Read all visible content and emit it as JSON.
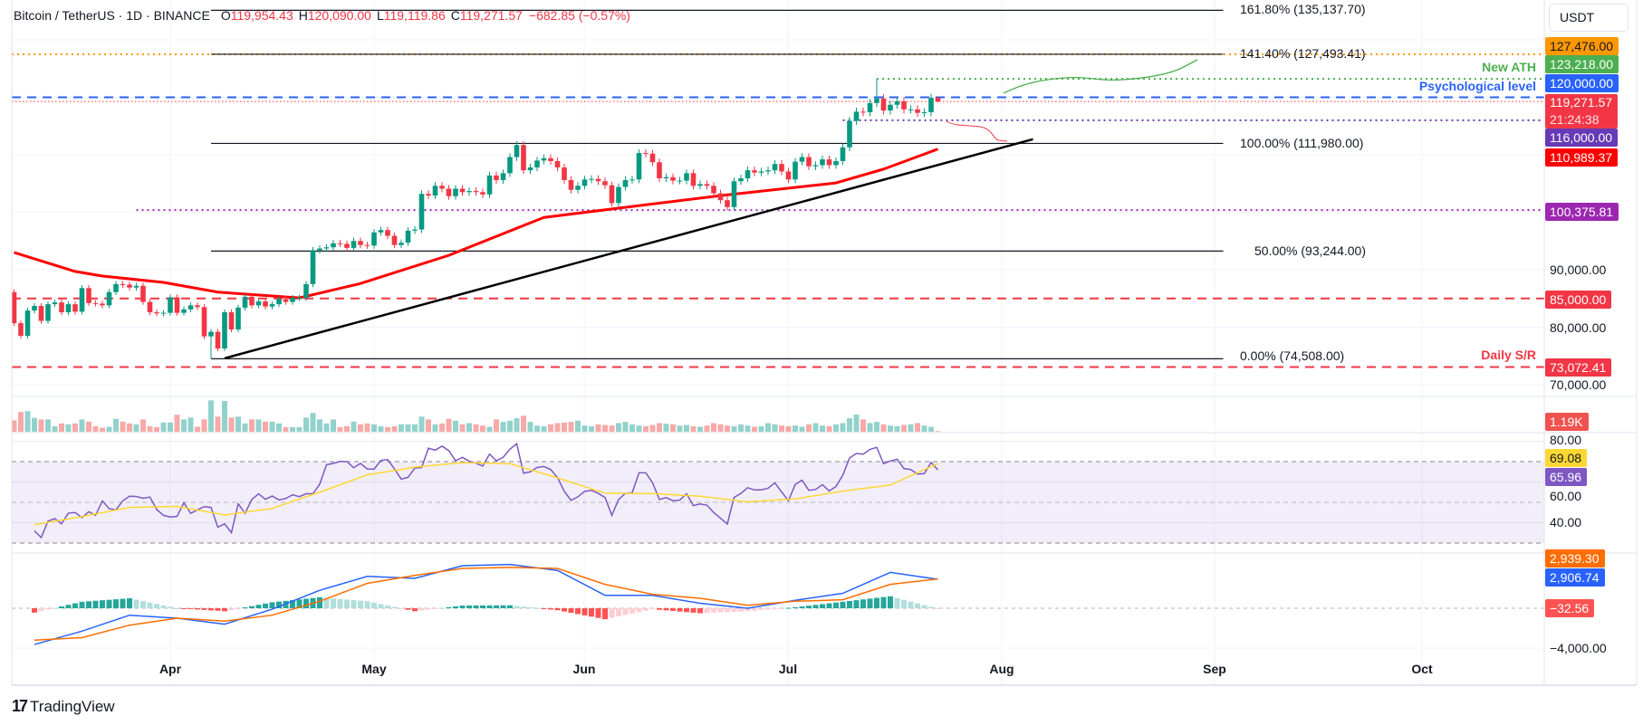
{
  "header": {
    "symbol": "Bitcoin / TetherUS · 1D · BINANCE",
    "open_label": "O",
    "open": "119,954.43",
    "high_label": "H",
    "high": "120,090.00",
    "low_label": "L",
    "low": "119,119.86",
    "close_label": "C",
    "close": "119,271.57",
    "change": "−682.85 (−0.57%)"
  },
  "currency_button": "USDT",
  "price_axis": {
    "ticks": [
      "90,000.00",
      "80,000.00",
      "70,000.00"
    ],
    "tags": [
      {
        "text": "127,476.00",
        "color": "#ff9800",
        "text_color": "#131722"
      },
      {
        "text": "123,218.00",
        "color": "#4caf50",
        "text_color": "#ffffff"
      },
      {
        "text": "120,000.00",
        "color": "#2962ff",
        "text_color": "#ffffff"
      },
      {
        "text": "119,271.57",
        "sub": "21:24:38",
        "color": "#f23645",
        "text_color": "#ffffff"
      },
      {
        "text": "116,000.00",
        "color": "#673ab7",
        "text_color": "#ffffff"
      },
      {
        "text": "110,989.37",
        "color": "#ff0000",
        "text_color": "#ffffff"
      },
      {
        "text": "100,375.81",
        "color": "#9c27b0",
        "text_color": "#ffffff"
      },
      {
        "text": "85,000.00",
        "color": "#f23645",
        "text_color": "#ffffff"
      },
      {
        "text": "73,072.41",
        "color": "#f23645",
        "text_color": "#ffffff"
      }
    ]
  },
  "annotations": {
    "new_ath": "New ATH",
    "psychological": "Psychological level",
    "daily_sr": "Daily S/R"
  },
  "fib_labels": [
    "161.80% (135,137.70)",
    "141.40% (127,493.41)",
    "100.00% (111,980.00)",
    "50.00% (93,244.00)",
    "0.00% (74,508.00)"
  ],
  "volume": {
    "tag": "1.19K",
    "color": "#ef5350"
  },
  "rsi": {
    "ticks": [
      "80.00",
      "60.00",
      "40.00"
    ],
    "ma_tag": "69.08",
    "ma_color": "#fdd835",
    "value_tag": "65.96",
    "value_color": "#7e57c2"
  },
  "macd": {
    "ticks": [
      "−4,000.00"
    ],
    "signal_tag": "2,939.30",
    "signal_color": "#ff6d00",
    "macd_tag": "2,906.74",
    "macd_color": "#2962ff",
    "hist_tag": "−32.56",
    "hist_color": "#ff5252"
  },
  "time_axis": [
    "Apr",
    "May",
    "Jun",
    "Jul",
    "Aug",
    "Sep",
    "Oct"
  ],
  "branding": "TradingView",
  "colors": {
    "up": "#089981",
    "down": "#f23645",
    "ema": "#ff0000",
    "rsi_band": "#7e57c2"
  },
  "chart_data": {
    "type": "candlestick",
    "interval": "1D",
    "first_date": "2025-03-09",
    "first_open": 86100,
    "closes": [
      80700,
      78500,
      82900,
      83700,
      81100,
      84000,
      84300,
      82600,
      84000,
      82700,
      86800,
      84200,
      84100,
      83800,
      86100,
      87500,
      87400,
      86900,
      87200,
      84400,
      82600,
      82400,
      82500,
      85200,
      82500,
      83100,
      83800,
      83500,
      78400,
      79200,
      76300,
      82600,
      79600,
      83400,
      85300,
      83800,
      84500,
      83600,
      84000,
      84900,
      84400,
      85100,
      85100,
      87500,
      93400,
      93700,
      93900,
      94600,
      94500,
      93800,
      95000,
      94300,
      94200,
      96500,
      96900,
      95900,
      94300,
      94700,
      96800,
      97000,
      103200,
      102900,
      104600,
      104100,
      102800,
      104100,
      103500,
      103700,
      103500,
      103100,
      106400,
      105600,
      106800,
      109600,
      111700,
      107300,
      107800,
      109000,
      109400,
      108900,
      107800,
      105600,
      103900,
      104600,
      105700,
      105800,
      105400,
      104700,
      101600,
      104400,
      105600,
      105700,
      110300,
      110200,
      108700,
      105900,
      106100,
      105500,
      105500,
      106800,
      104600,
      104900,
      104600,
      103300,
      102100,
      100900,
      105400,
      105900,
      107300,
      106900,
      107100,
      107300,
      108400,
      107100,
      105700,
      108800,
      109600,
      108000,
      108200,
      109200,
      108200,
      108900,
      111300,
      115900,
      117500,
      117400,
      119000,
      119800,
      117700,
      118700,
      119300,
      117900,
      117900,
      117300,
      117400,
      119900,
      119271.57
    ],
    "last_candle": {
      "open": 119954.43,
      "high": 120090.0,
      "low": 119119.86,
      "close": 119271.57
    },
    "extremes": [
      {
        "date": "2025-07-14",
        "high": 123218
      },
      {
        "date": "2025-04-07",
        "low": 74508
      }
    ],
    "volume_k": [
      18.5,
      32,
      33.5,
      22.5,
      20,
      20,
      9,
      13.5,
      12,
      13.5,
      20,
      16.5,
      9,
      6.5,
      8,
      21,
      16.5,
      13.5,
      12,
      20,
      9,
      7.5,
      15,
      15,
      27.5,
      20,
      23,
      8,
      20,
      51,
      24.5,
      50,
      23,
      24.5,
      13.5,
      20,
      20,
      16.5,
      16.5,
      13.5,
      7.5,
      7.5,
      7.5,
      23,
      30.5,
      20,
      13.5,
      20,
      7.5,
      9,
      16.5,
      12,
      13.5,
      12,
      9,
      7.5,
      9,
      12,
      12,
      12,
      24.5,
      20,
      12,
      13.5,
      21,
      18,
      12,
      14,
      12,
      10,
      8,
      20,
      16,
      18,
      22,
      26,
      16,
      10,
      9,
      12,
      14,
      15,
      16,
      18,
      10,
      9,
      12,
      11,
      10,
      14,
      16,
      12,
      10,
      9,
      11,
      14,
      13,
      12,
      10,
      11,
      9,
      8,
      10,
      14,
      12,
      10,
      9,
      12,
      10,
      8,
      9,
      14,
      12,
      10,
      9,
      10,
      8,
      12,
      14,
      10,
      9,
      12,
      14,
      22,
      28,
      20,
      14,
      16,
      12,
      10,
      9,
      11,
      12,
      14,
      10,
      8,
      1.19
    ],
    "ema": [
      {
        "date": "2025-03-09",
        "value": 93000
      },
      {
        "date": "2025-03-18",
        "value": 89700
      },
      {
        "date": "2025-03-22",
        "value": 88900
      },
      {
        "date": "2025-03-31",
        "value": 87800
      },
      {
        "date": "2025-04-08",
        "value": 86100
      },
      {
        "date": "2025-04-20",
        "value": 85100
      },
      {
        "date": "2025-04-29",
        "value": 87600
      },
      {
        "date": "2025-05-12",
        "value": 92500
      },
      {
        "date": "2025-05-26",
        "value": 99100
      },
      {
        "date": "2025-06-08",
        "value": 101000
      },
      {
        "date": "2025-06-21",
        "value": 102900
      },
      {
        "date": "2025-07-08",
        "value": 105100
      },
      {
        "date": "2025-07-15",
        "value": 107500
      },
      {
        "date": "2025-07-23",
        "value": 110989.37
      }
    ],
    "levels": [
      {
        "price": 127476,
        "color": "#ff9800",
        "style": "dotted",
        "from": "start"
      },
      {
        "price": 123218,
        "color": "#4caf50",
        "style": "dotted",
        "from": "2025-07-14"
      },
      {
        "price": 120000,
        "color": "#2962ff",
        "style": "dashed",
        "from": "start"
      },
      {
        "price": 119271.57,
        "color": "#f23645",
        "style": "dotted-thin",
        "from": "start"
      },
      {
        "price": 116000,
        "color": "#673ab7",
        "style": "dotted",
        "from": "2025-07-09"
      },
      {
        "price": 100375.81,
        "color": "#9c27b0",
        "style": "dotted",
        "from": "2025-03-27"
      },
      {
        "price": 85000,
        "color": "#f23645",
        "style": "dashed",
        "from": "start"
      },
      {
        "price": 73072.41,
        "color": "#f23645",
        "style": "dashed",
        "from": "start"
      }
    ],
    "fib": {
      "start": "2025-04-07",
      "end": "2025-09-03",
      "prices": [
        135137.7,
        127493.41,
        111980.0,
        93244.0,
        74508.0
      ]
    },
    "trendline": {
      "from": {
        "date": "2025-04-09",
        "price": 74600
      },
      "to": {
        "date": "2025-08-06",
        "price": 112700
      }
    },
    "price_range": [
      70000,
      135000
    ],
    "rsi_daily": [
      36,
      32.7,
      40.8,
      42,
      39.5,
      44.7,
      45,
      42.5,
      45.4,
      43.6,
      50.7,
      46.9,
      46.3,
      50.7,
      53,
      52.9,
      52,
      52.6,
      46.5,
      43.6,
      42.8,
      43.1,
      49.8,
      44.6,
      46.3,
      47.9,
      47.5,
      37.8,
      39.4,
      35.1,
      49.3,
      44.6,
      51.4,
      54.2,
      51.5,
      53.1,
      51.2,
      51.9,
      53.7,
      52.8,
      54.2,
      54.2,
      58.9,
      68.5,
      69.1,
      70.1,
      70,
      67,
      69.1,
      66.4,
      66.3,
      70.6,
      71,
      66.4,
      61.4,
      62.3,
      66.8,
      67.1,
      76.6,
      75.6,
      77.6,
      75.4,
      70.4,
      72.1,
      70.2,
      69.2,
      67.8,
      73.7,
      70.4,
      72.1,
      76.1,
      78.8,
      64.3,
      65,
      67.1,
      67.6,
      66.1,
      62.2,
      55.4,
      51,
      52.7,
      55.4,
      55.9,
      54.4,
      52.4,
      43.6,
      51.4,
      54.4,
      54.7,
      64.5,
      64.5,
      59.6,
      51.4,
      52.3,
      50.8,
      51.1,
      54.2,
      48.4,
      49.2,
      48.6,
      45,
      42.2,
      39.4,
      52.4,
      54.4,
      57.2,
      56.1,
      56.1,
      56.9,
      59.6,
      55.1,
      50.8,
      58.8,
      60.9,
      55.9,
      56.3,
      58.7,
      55.6,
      57.8,
      63.3,
      71.8,
      74,
      73.6,
      76,
      77,
      69,
      70.3,
      71.2,
      66.6,
      66.1,
      63.9,
      64.1,
      69.6,
      65.96
    ],
    "rsi_ma_weekly": [
      39,
      43,
      47.5,
      48,
      43.8,
      47,
      55,
      63.5,
      67.3,
      69.5,
      69,
      62,
      54.5,
      54.3,
      53,
      50.2,
      51.7,
      55.5,
      58.5,
      69.08
    ],
    "rsi_levels": [
      70,
      50,
      30
    ],
    "macd_weekly": [
      -3640,
      -2300,
      -700,
      -1000,
      -1600,
      -100,
      1800,
      3200,
      3000,
      4270,
      4400,
      3800,
      1300,
      1300,
      500,
      0,
      800,
      1500,
      3600,
      2906.74
    ],
    "signal_weekly": [
      -3200,
      -2950,
      -1700,
      -1000,
      -1300,
      -700,
      700,
      2500,
      3300,
      4000,
      4100,
      4000,
      2400,
      1400,
      1000,
      300,
      700,
      850,
      2400,
      2939.3
    ]
  }
}
